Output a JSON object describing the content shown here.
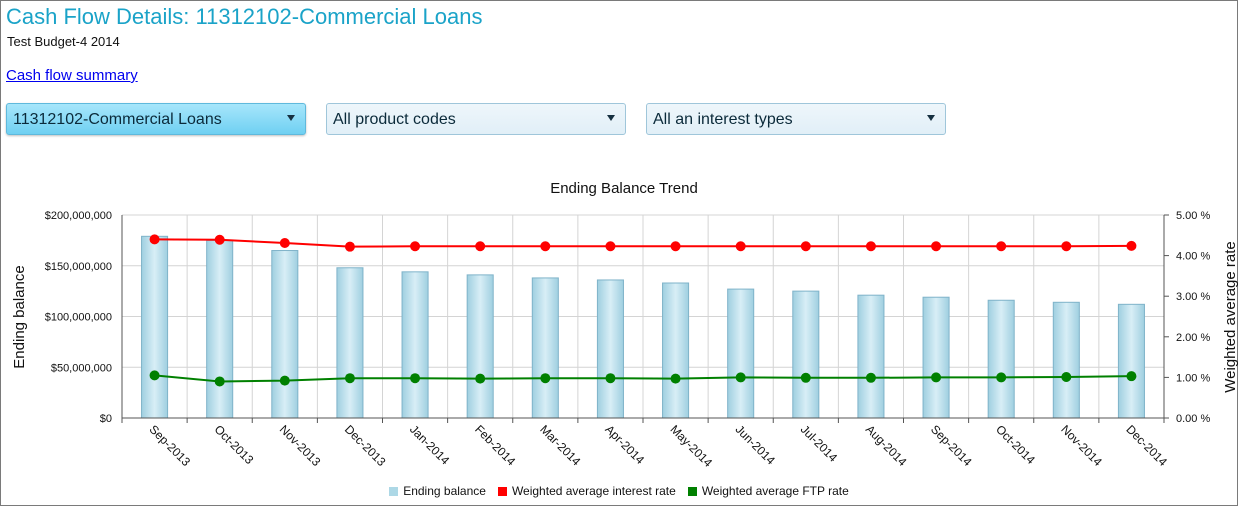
{
  "header": {
    "title": "Cash Flow Details: 11312102-Commercial Loans",
    "subtitle": "Test Budget-4 2014",
    "link_label": "Cash flow summary"
  },
  "filters": {
    "account": {
      "value": "11312102-Commercial Loans",
      "icon": "chevron-down-icon"
    },
    "product": {
      "value": "All product codes",
      "icon": "chevron-down-icon"
    },
    "interest": {
      "value": "All an interest types",
      "icon": "chevron-down-icon"
    }
  },
  "colors": {
    "title": "#1aa3c8",
    "bar": "#add8e6",
    "bar_edge": "#7fb3c9",
    "interest_line": "#ff0000",
    "ftp_line": "#008000",
    "active_dropdown": "#6fd0f2"
  },
  "chart_data": {
    "type": "bar",
    "title": "Ending Balance Trend",
    "xlabel": "",
    "ylabel": "Ending balance",
    "y2label": "Weighted average rate",
    "ylim": [
      0,
      200000000
    ],
    "y2lim": [
      0,
      5
    ],
    "yticks": [
      "$0",
      "$50,000,000",
      "$100,000,000",
      "$150,000,000",
      "$200,000,000"
    ],
    "y2ticks": [
      "0.00 %",
      "1.00 %",
      "2.00 %",
      "3.00 %",
      "4.00 %",
      "5.00 %"
    ],
    "grid": true,
    "legend_position": "bottom",
    "categories": [
      "Sep-2013",
      "Oct-2013",
      "Nov-2013",
      "Dec-2013",
      "Jan-2014",
      "Feb-2014",
      "Mar-2014",
      "Apr-2014",
      "May-2014",
      "Jun-2014",
      "Jul-2014",
      "Aug-2014",
      "Sep-2014",
      "Oct-2014",
      "Nov-2014",
      "Dec-2014"
    ],
    "series": [
      {
        "name": "Ending balance",
        "type": "bar",
        "axis": "left",
        "values": [
          179000000,
          175000000,
          165000000,
          148000000,
          144000000,
          141000000,
          138000000,
          136000000,
          133000000,
          127000000,
          125000000,
          121000000,
          119000000,
          116000000,
          114000000,
          112000000
        ]
      },
      {
        "name": "Weighted average interest rate",
        "type": "line",
        "axis": "right",
        "values": [
          4.4,
          4.39,
          4.31,
          4.22,
          4.23,
          4.23,
          4.23,
          4.23,
          4.23,
          4.23,
          4.23,
          4.23,
          4.23,
          4.23,
          4.23,
          4.24
        ]
      },
      {
        "name": "Weighted average FTP rate",
        "type": "line",
        "axis": "right",
        "values": [
          1.05,
          0.9,
          0.92,
          0.98,
          0.98,
          0.97,
          0.98,
          0.98,
          0.97,
          1.0,
          0.99,
          0.99,
          1.0,
          1.0,
          1.01,
          1.03
        ]
      }
    ]
  }
}
